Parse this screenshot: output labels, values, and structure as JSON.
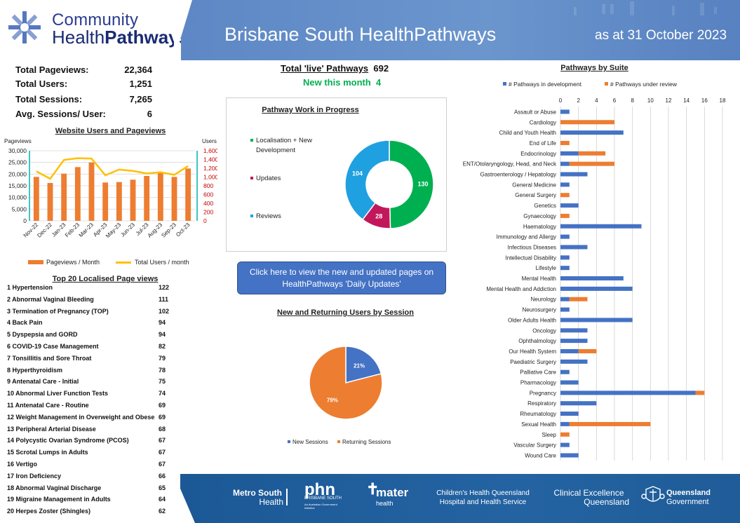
{
  "header": {
    "logo_line1": "Community",
    "logo_line2a": "Health",
    "logo_line2b": "Pathways",
    "title": "Brisbane South HealthPathways",
    "date": "as at 31 October 2023"
  },
  "stats": [
    {
      "label": "Total Pageviews:",
      "value": "22,364"
    },
    {
      "label": "Total Users:",
      "value": "1,251"
    },
    {
      "label": "Total Sessions:",
      "value": "7,265"
    },
    {
      "label": "Avg. Sessions/ User:",
      "value": "6"
    }
  ],
  "live": {
    "label": "Total 'live' Pathways",
    "value": "692",
    "new_label": "New this month",
    "new_value": "4"
  },
  "button_label": "Click here to view the new and updated pages on HealthPathways 'Daily Updates'",
  "web_chart": {
    "chart_data": {
      "type": "bar+line",
      "title": "Website Users and Pageviews",
      "ylabel_left": "Pageviews",
      "ylabel_right": "Users",
      "categories": [
        "Nov-22",
        "Dec-22",
        "Jan-23",
        "Feb-23",
        "Mar-23",
        "Apr-23",
        "May-23",
        "Jun-23",
        "Jul-23",
        "Aug-23",
        "Sep-23",
        "Oct-23"
      ],
      "left_ticks": [
        "0",
        "5,000",
        "10,000",
        "15,000",
        "20,000",
        "25,000",
        "30,000"
      ],
      "right_ticks": [
        "0",
        "200",
        "400",
        "600",
        "800",
        "1,000",
        "1,200",
        "1,400",
        "1,600"
      ],
      "ylim_left": [
        0,
        30000
      ],
      "ylim_right": [
        0,
        1600
      ],
      "series": [
        {
          "name": "Pageviews / Month",
          "type": "bar",
          "color": "#ed7d31",
          "values": [
            18800,
            16200,
            20200,
            23000,
            25000,
            16400,
            16600,
            17600,
            19200,
            20800,
            18800,
            22400
          ]
        },
        {
          "name": "Total Users / month",
          "type": "line",
          "color": "#ffc000",
          "values": [
            1130,
            960,
            1390,
            1430,
            1420,
            1040,
            1170,
            1140,
            1080,
            1110,
            1050,
            1251
          ]
        }
      ]
    }
  },
  "work_chart": {
    "title": "Pathway Work in Progress",
    "chart_data": {
      "type": "pie",
      "title": "Pathway Work in Progress",
      "labels": [
        "Localisation + New Development",
        "Updates",
        "Reviews"
      ],
      "values": [
        130,
        28,
        104
      ],
      "colors": [
        "#00b050",
        "#c2185b",
        "#1fa0e0"
      ]
    },
    "legend_lines": [
      [
        "Localisation + New",
        "Development"
      ],
      [
        "Updates"
      ],
      [
        "Reviews"
      ]
    ]
  },
  "session_chart": {
    "title": "New and Returning Users by Session",
    "chart_data": {
      "type": "pie",
      "title": "New and Returning Users by Session",
      "labels": [
        "New Sessions",
        "Returning Sessions"
      ],
      "values": [
        21,
        79
      ],
      "display": [
        "21%",
        "79%"
      ],
      "colors": [
        "#4472c4",
        "#ed7d31"
      ]
    }
  },
  "top20": {
    "title": "Top 20 Localised Page views",
    "rows": [
      {
        "rank": "1",
        "name": "Hypertension",
        "views": "122"
      },
      {
        "rank": "2",
        "name": "Abnormal Vaginal Bleeding",
        "views": "111"
      },
      {
        "rank": "3",
        "name": "Termination of Pregnancy (TOP)",
        "views": "102"
      },
      {
        "rank": "4",
        "name": "Back Pain",
        "views": "94"
      },
      {
        "rank": "5",
        "name": "Dyspepsia and GORD",
        "views": "94"
      },
      {
        "rank": "6",
        "name": "COVID-19 Case Management",
        "views": "82"
      },
      {
        "rank": "7",
        "name": "Tonsillitis and Sore Throat",
        "views": "79"
      },
      {
        "rank": "8",
        "name": "Hyperthyroidism",
        "views": "78"
      },
      {
        "rank": "9",
        "name": "Antenatal Care - Initial",
        "views": "75"
      },
      {
        "rank": "10",
        "name": "Abnormal Liver Function Tests",
        "views": "74"
      },
      {
        "rank": "11",
        "name": "Antenatal Care - Routine",
        "views": "69"
      },
      {
        "rank": "12",
        "name": "Weight Management in Overweight and Obese A",
        "views": "69"
      },
      {
        "rank": "13",
        "name": "Peripheral Arterial Disease",
        "views": "68"
      },
      {
        "rank": "14",
        "name": "Polycystic Ovarian Syndrome (PCOS)",
        "views": "67"
      },
      {
        "rank": "15",
        "name": "Scrotal Lumps in Adults",
        "views": "67"
      },
      {
        "rank": "16",
        "name": "Vertigo",
        "views": "67"
      },
      {
        "rank": "17",
        "name": "Iron Deficiency",
        "views": "66"
      },
      {
        "rank": "18",
        "name": "Abnormal Vaginal Discharge",
        "views": "65"
      },
      {
        "rank": "19",
        "name": "Migraine Management in Adults",
        "views": "64"
      },
      {
        "rank": "20",
        "name": "Herpes Zoster (Shingles)",
        "views": "62"
      }
    ]
  },
  "suite_chart": {
    "chart_data": {
      "type": "bar",
      "orientation": "horizontal",
      "stacked": true,
      "title": "Pathways by Suite",
      "xlim": [
        0,
        18
      ],
      "x_ticks": [
        "0",
        "2",
        "4",
        "6",
        "8",
        "10",
        "12",
        "14",
        "16",
        "18"
      ],
      "legend_position": "top",
      "categories": [
        "Assault or Abuse",
        "Cardiology",
        "Child and Youth Health",
        "End of Life",
        "Endocrinology",
        "ENT/Otolaryngology, Head, and Neck",
        "Gastroenterology / Hepatology",
        "General Medicine",
        "General Surgery",
        "Genetics",
        "Gynaecology",
        "Haematology",
        "Immunology and Allergy",
        "Infectious Diseases",
        "Intellectual Disability",
        "Lifestyle",
        "Mental Health",
        "Mental Health and Addiction",
        "Neurology",
        "Neurosurgery",
        "Older Adults Health",
        "Oncology",
        "Ophthalmology",
        "Our Health System",
        "Paediatric Surgery",
        "Palliative Care",
        "Pharmacology",
        "Pregnancy",
        "Respiratory",
        "Rheumatology",
        "Sexual Health",
        "Sleep",
        "Vascular Surgery",
        "Wound Care"
      ],
      "series": [
        {
          "name": "# Pathways in development",
          "color": "#4472c4",
          "values": [
            1,
            0,
            7,
            0,
            2,
            1,
            3,
            1,
            0,
            2,
            0,
            9,
            1,
            3,
            1,
            1,
            7,
            8,
            1,
            1,
            8,
            3,
            3,
            2,
            3,
            1,
            2,
            15,
            4,
            2,
            1,
            0,
            1,
            2
          ]
        },
        {
          "name": "# Pathways under review",
          "color": "#ed7d31",
          "values": [
            0,
            6,
            0,
            1,
            3,
            5,
            0,
            0,
            1,
            0,
            1,
            0,
            0,
            0,
            0,
            0,
            0,
            0,
            2,
            0,
            0,
            0,
            0,
            2,
            0,
            0,
            0,
            1,
            0,
            0,
            9,
            1,
            0,
            0
          ]
        }
      ]
    }
  },
  "footer": {
    "metro_line1": "Metro South",
    "metro_line2": "Health",
    "phn": "phn",
    "phn_sub": "BRISBANE SOUTH",
    "phn_tag": "An Australian Government Initiative",
    "mater": "mater",
    "mater_sub": "health",
    "chq_line1": "Children's Health Queensland",
    "chq_line2": "Hospital and Health Service",
    "ceq_line1": "Clinical Excellence",
    "ceq_line2": "Queensland",
    "qg_line1": "Queensland",
    "qg_line2": "Government"
  }
}
